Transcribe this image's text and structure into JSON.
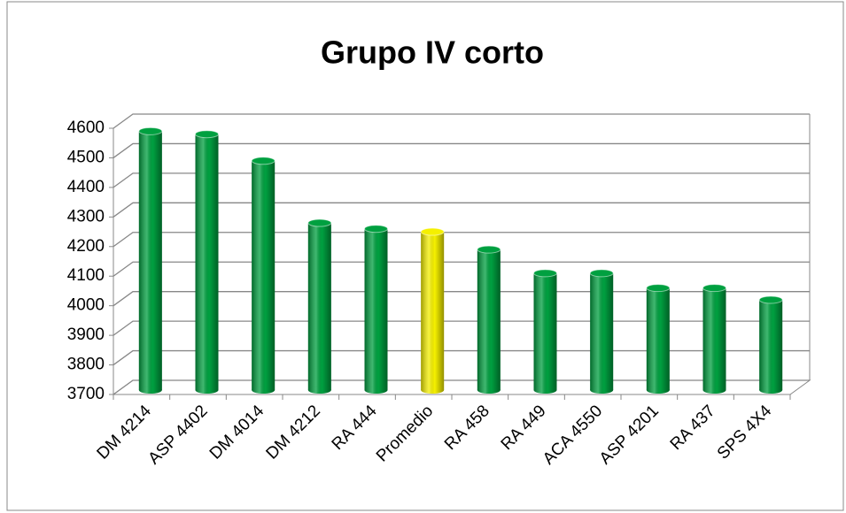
{
  "chart_data": {
    "type": "bar",
    "title": "Grupo IV corto",
    "categories": [
      "DM 4214",
      "ASP 4402",
      "DM 4014",
      "DM 4212",
      "RA 444",
      "Promedio",
      "RA 458",
      "RA 449",
      "ACA 4550",
      "ASP 4201",
      "RA 437",
      "SPS 4X4"
    ],
    "values": [
      4590,
      4580,
      4490,
      4280,
      4260,
      4250,
      4190,
      4110,
      4110,
      4060,
      4060,
      4020
    ],
    "colors": [
      "#00a040",
      "#00a040",
      "#00a040",
      "#00a040",
      "#00a040",
      "#f5f000",
      "#00a040",
      "#00a040",
      "#00a040",
      "#00a040",
      "#00a040",
      "#00a040"
    ],
    "ylim": [
      3700,
      4600
    ],
    "yticks": [
      3700,
      3800,
      3900,
      4000,
      4100,
      4200,
      4300,
      4400,
      4500,
      4600
    ],
    "grid": true
  }
}
